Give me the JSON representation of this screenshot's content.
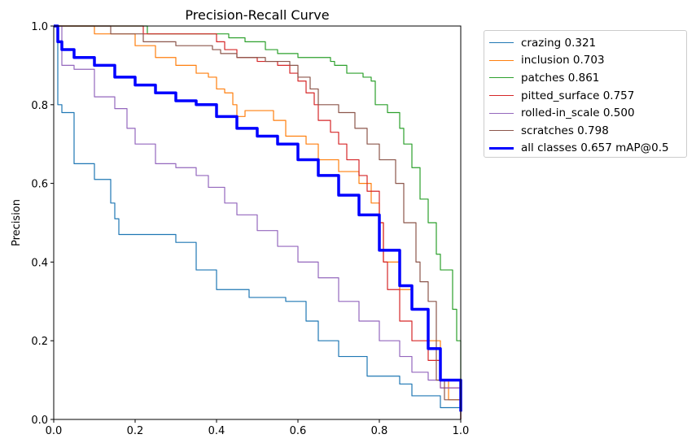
{
  "chart_data": {
    "type": "line",
    "title": "Precision-Recall Curve",
    "xlabel": "Recall",
    "ylabel": "Precision",
    "xlim": [
      0,
      1
    ],
    "ylim": [
      0,
      1
    ],
    "xticks": [
      "0.0",
      "0.2",
      "0.4",
      "0.6",
      "0.8",
      "1.0"
    ],
    "yticks": [
      "0.0",
      "0.2",
      "0.4",
      "0.6",
      "0.8",
      "1.0"
    ],
    "legend_position": "outside-top-right",
    "series": [
      {
        "name": "crazing 0.321",
        "color": "#1f77b4",
        "width": 1.2,
        "x": [
          0,
          0.01,
          0.01,
          0.02,
          0.05,
          0.1,
          0.14,
          0.15,
          0.16,
          0.3,
          0.35,
          0.4,
          0.48,
          0.57,
          0.62,
          0.65,
          0.7,
          0.77,
          0.85,
          0.88,
          0.95,
          1.0
        ],
        "y": [
          1,
          1,
          0.8,
          0.78,
          0.65,
          0.61,
          0.55,
          0.51,
          0.47,
          0.45,
          0.38,
          0.33,
          0.31,
          0.3,
          0.25,
          0.2,
          0.16,
          0.11,
          0.09,
          0.06,
          0.03,
          0.0
        ]
      },
      {
        "name": "inclusion 0.703",
        "color": "#ff7f0e",
        "width": 1.2,
        "x": [
          0,
          0.1,
          0.1,
          0.18,
          0.2,
          0.25,
          0.3,
          0.35,
          0.38,
          0.4,
          0.42,
          0.44,
          0.45,
          0.47,
          0.54,
          0.57,
          0.62,
          0.65,
          0.7,
          0.75,
          0.78,
          0.8,
          0.81,
          0.85,
          0.88,
          0.92,
          0.95,
          0.97,
          1.0
        ],
        "y": [
          1,
          1,
          0.98,
          0.98,
          0.95,
          0.92,
          0.9,
          0.88,
          0.87,
          0.84,
          0.83,
          0.8,
          0.77,
          0.785,
          0.76,
          0.72,
          0.7,
          0.66,
          0.63,
          0.6,
          0.55,
          0.5,
          0.4,
          0.33,
          0.28,
          0.2,
          0.1,
          0.05,
          0.0
        ]
      },
      {
        "name": "patches 0.861",
        "color": "#2ca02c",
        "width": 1.2,
        "x": [
          0,
          0.22,
          0.23,
          0.38,
          0.43,
          0.47,
          0.52,
          0.55,
          0.6,
          0.68,
          0.69,
          0.72,
          0.76,
          0.78,
          0.79,
          0.82,
          0.85,
          0.86,
          0.88,
          0.9,
          0.92,
          0.94,
          0.95,
          0.98,
          0.99,
          1.0
        ],
        "y": [
          1,
          1,
          0.98,
          0.98,
          0.97,
          0.96,
          0.94,
          0.93,
          0.92,
          0.91,
          0.9,
          0.88,
          0.87,
          0.86,
          0.8,
          0.78,
          0.74,
          0.7,
          0.64,
          0.56,
          0.5,
          0.42,
          0.38,
          0.28,
          0.2,
          0.03
        ]
      },
      {
        "name": "pitted_surface 0.757",
        "color": "#d62728",
        "width": 1.2,
        "x": [
          0,
          0.22,
          0.22,
          0.38,
          0.4,
          0.42,
          0.45,
          0.5,
          0.55,
          0.58,
          0.6,
          0.62,
          0.64,
          0.65,
          0.68,
          0.7,
          0.72,
          0.75,
          0.77,
          0.8,
          0.8,
          0.81,
          0.82,
          0.85,
          0.88,
          0.92,
          0.95,
          1.0
        ],
        "y": [
          1,
          1,
          0.98,
          0.98,
          0.96,
          0.94,
          0.92,
          0.91,
          0.9,
          0.88,
          0.86,
          0.83,
          0.8,
          0.76,
          0.73,
          0.7,
          0.66,
          0.62,
          0.58,
          0.55,
          0.5,
          0.4,
          0.33,
          0.25,
          0.2,
          0.15,
          0.08,
          0.0
        ]
      },
      {
        "name": "rolled-in_scale 0.500",
        "color": "#9467bd",
        "width": 1.2,
        "x": [
          0,
          0.01,
          0.02,
          0.05,
          0.1,
          0.15,
          0.18,
          0.2,
          0.25,
          0.3,
          0.35,
          0.38,
          0.42,
          0.45,
          0.5,
          0.55,
          0.6,
          0.65,
          0.7,
          0.75,
          0.8,
          0.85,
          0.88,
          0.92,
          0.95,
          1.0
        ],
        "y": [
          1,
          1,
          0.9,
          0.89,
          0.82,
          0.79,
          0.74,
          0.7,
          0.65,
          0.64,
          0.62,
          0.59,
          0.55,
          0.52,
          0.48,
          0.44,
          0.4,
          0.36,
          0.3,
          0.25,
          0.2,
          0.16,
          0.12,
          0.1,
          0.08,
          0.0
        ]
      },
      {
        "name": "scratches 0.798",
        "color": "#8c564b",
        "width": 1.2,
        "x": [
          0,
          0.14,
          0.14,
          0.22,
          0.3,
          0.39,
          0.41,
          0.45,
          0.52,
          0.58,
          0.6,
          0.63,
          0.65,
          0.7,
          0.74,
          0.77,
          0.8,
          0.84,
          0.86,
          0.89,
          0.9,
          0.92,
          0.94,
          0.96,
          1.0
        ],
        "y": [
          1,
          1,
          0.98,
          0.96,
          0.95,
          0.94,
          0.93,
          0.92,
          0.91,
          0.9,
          0.87,
          0.84,
          0.8,
          0.78,
          0.74,
          0.7,
          0.66,
          0.6,
          0.5,
          0.4,
          0.35,
          0.3,
          0.1,
          0.05,
          0.0
        ]
      },
      {
        "name": "all classes 0.657 mAP@0.5",
        "color": "#0000ff",
        "width": 3.5,
        "x": [
          0,
          0.01,
          0.02,
          0.05,
          0.1,
          0.15,
          0.2,
          0.25,
          0.3,
          0.35,
          0.4,
          0.45,
          0.5,
          0.55,
          0.6,
          0.65,
          0.7,
          0.75,
          0.8,
          0.85,
          0.88,
          0.92,
          0.95,
          1.0
        ],
        "y": [
          1,
          0.96,
          0.94,
          0.92,
          0.9,
          0.87,
          0.85,
          0.83,
          0.81,
          0.8,
          0.77,
          0.74,
          0.72,
          0.7,
          0.66,
          0.62,
          0.57,
          0.52,
          0.43,
          0.34,
          0.28,
          0.18,
          0.1,
          0.02
        ]
      }
    ]
  }
}
